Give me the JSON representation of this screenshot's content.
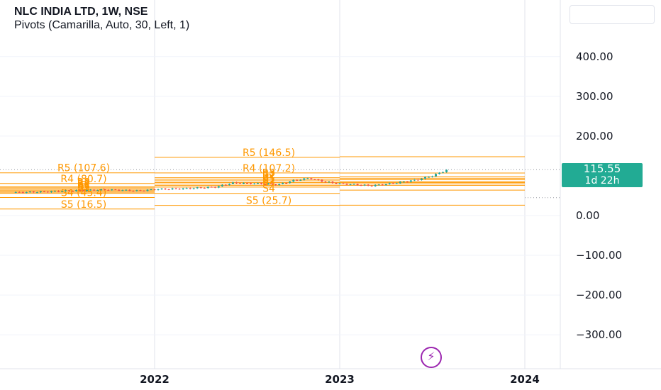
{
  "header": {
    "title": "NLC INDIA LTD, 1W, NSE",
    "indicator": "Pivots (Camarilla, Auto, 30, Left, 1)"
  },
  "price_badge": {
    "value": "115.55",
    "countdown": "1d 22h",
    "color": "#22ab94"
  },
  "colors": {
    "pivot": "#ff9800",
    "up": "#26a69a",
    "down": "#ef5350",
    "grid": "#e0e3eb",
    "badge_icon": "#9c27b0"
  },
  "icons": {
    "bolt": "lightning-bolt-icon"
  },
  "chart_data": {
    "type": "candlestick",
    "title": "NLC INDIA LTD, 1W, NSE",
    "ylim": [
      -345,
      450
    ],
    "yticks": [
      "400.00",
      "300.00",
      "200.00",
      "0.00",
      "−100.00",
      "−200.00",
      "−300.00"
    ],
    "ytick_values": [
      400,
      300,
      200,
      0,
      -100,
      -200,
      -300
    ],
    "xticks": [
      "2022",
      "2023",
      "2024"
    ],
    "last_price": 115.55,
    "grid": true,
    "price_path": [
      [
        "2021-04",
        58
      ],
      [
        "2021-06",
        60
      ],
      [
        "2021-08",
        63
      ],
      [
        "2021-10",
        65
      ],
      [
        "2021-12",
        62
      ],
      [
        "2022-01",
        66
      ],
      [
        "2022-03",
        68
      ],
      [
        "2022-05",
        72
      ],
      [
        "2022-06",
        82
      ],
      [
        "2022-08",
        80
      ],
      [
        "2022-09",
        78
      ],
      [
        "2022-10",
        88
      ],
      [
        "2022-11",
        94
      ],
      [
        "2022-12",
        85
      ],
      [
        "2023-01",
        80
      ],
      [
        "2023-02",
        78
      ],
      [
        "2023-03",
        75
      ],
      [
        "2023-04",
        79
      ],
      [
        "2023-05",
        84
      ],
      [
        "2023-06",
        90
      ],
      [
        "2023-07",
        100
      ],
      [
        "2023-08",
        115.55
      ]
    ],
    "pivot_periods": [
      {
        "period": "2021",
        "levels": [
          {
            "name": "R5",
            "value": 107.6,
            "label": "R5 (107.6)"
          },
          {
            "name": "R4",
            "value": 80.7,
            "label": "R4 (80.7)"
          },
          {
            "name": "R3",
            "value": 72.5,
            "label": "R3"
          },
          {
            "name": "R2",
            "value": 69.7,
            "label": "R2"
          },
          {
            "name": "R1",
            "value": 67.0,
            "label": "R1"
          },
          {
            "name": "P",
            "value": 64.0,
            "label": "P"
          },
          {
            "name": "S1",
            "value": 61.5,
            "label": "S1"
          },
          {
            "name": "S2",
            "value": 58.7,
            "label": "S2"
          },
          {
            "name": "S3",
            "value": 55.9,
            "label": "S3"
          },
          {
            "name": "S4",
            "value": 45.4,
            "label": "S4 (45.4)"
          },
          {
            "name": "S5",
            "value": 16.5,
            "label": "S5 (16.5)"
          }
        ]
      },
      {
        "period": "2022",
        "levels": [
          {
            "name": "R5",
            "value": 146.5,
            "label": "R5 (146.5)"
          },
          {
            "name": "R4",
            "value": 107.2,
            "label": "R4 (107.2)"
          },
          {
            "name": "R3",
            "value": 95.3,
            "label": "R3"
          },
          {
            "name": "R2",
            "value": 91.3,
            "label": "R2"
          },
          {
            "name": "R1",
            "value": 87.4,
            "label": "R1"
          },
          {
            "name": "P",
            "value": 83.0,
            "label": "P"
          },
          {
            "name": "S1",
            "value": 79.5,
            "label": "S1"
          },
          {
            "name": "S2",
            "value": 75.5,
            "label": "S2"
          },
          {
            "name": "S3",
            "value": 71.6,
            "label": "S3"
          },
          {
            "name": "S4",
            "value": 55.8,
            "label": "S4"
          },
          {
            "name": "S5",
            "value": 25.7,
            "label": "S5 (25.7)"
          }
        ]
      },
      {
        "period": "2023",
        "levels": [
          {
            "name": "R5",
            "value": 148.0
          },
          {
            "name": "R4",
            "value": 107.0
          },
          {
            "name": "R3",
            "value": 98.0
          },
          {
            "name": "R2",
            "value": 94.0
          },
          {
            "name": "R1",
            "value": 90.0
          },
          {
            "name": "P",
            "value": 86.0
          },
          {
            "name": "S1",
            "value": 83.0
          },
          {
            "name": "S2",
            "value": 80.0
          },
          {
            "name": "S3",
            "value": 76.0
          },
          {
            "name": "S4",
            "value": 64.0
          },
          {
            "name": "S5",
            "value": 26.0
          }
        ]
      }
    ]
  }
}
